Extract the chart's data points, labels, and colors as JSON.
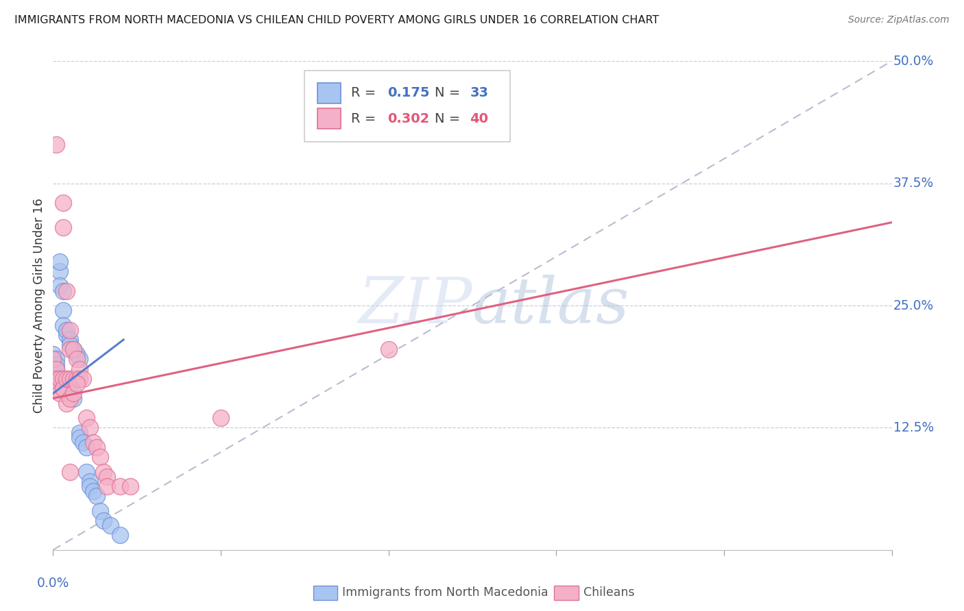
{
  "title": "IMMIGRANTS FROM NORTH MACEDONIA VS CHILEAN CHILD POVERTY AMONG GIRLS UNDER 16 CORRELATION CHART",
  "source": "Source: ZipAtlas.com",
  "ylabel": "Child Poverty Among Girls Under 16",
  "ytick_labels": [
    "12.5%",
    "25.0%",
    "37.5%",
    "50.0%"
  ],
  "ytick_values": [
    0.125,
    0.25,
    0.375,
    0.5
  ],
  "xlim": [
    0.0,
    0.25
  ],
  "ylim": [
    0.0,
    0.5
  ],
  "watermark_zip": "ZIP",
  "watermark_atlas": "atlas",
  "legend_blue_R": "0.175",
  "legend_blue_N": "33",
  "legend_pink_R": "0.302",
  "legend_pink_N": "40",
  "blue_color": "#a8c4f0",
  "pink_color": "#f4b0c8",
  "blue_edge": "#7090d8",
  "pink_edge": "#e07090",
  "trend_blue_color": "#5a7ecc",
  "trend_pink_color": "#e06080",
  "diagonal_color": "#b8bcd0",
  "blue_scatter": [
    [
      0.0,
      0.2
    ],
    [
      0.001,
      0.195
    ],
    [
      0.001,
      0.19
    ],
    [
      0.001,
      0.185
    ],
    [
      0.002,
      0.285
    ],
    [
      0.002,
      0.295
    ],
    [
      0.002,
      0.27
    ],
    [
      0.002,
      0.175
    ],
    [
      0.003,
      0.265
    ],
    [
      0.003,
      0.245
    ],
    [
      0.003,
      0.23
    ],
    [
      0.004,
      0.22
    ],
    [
      0.004,
      0.225
    ],
    [
      0.005,
      0.215
    ],
    [
      0.005,
      0.21
    ],
    [
      0.005,
      0.165
    ],
    [
      0.006,
      0.205
    ],
    [
      0.006,
      0.155
    ],
    [
      0.007,
      0.2
    ],
    [
      0.008,
      0.195
    ],
    [
      0.008,
      0.12
    ],
    [
      0.008,
      0.115
    ],
    [
      0.009,
      0.11
    ],
    [
      0.01,
      0.105
    ],
    [
      0.01,
      0.08
    ],
    [
      0.011,
      0.07
    ],
    [
      0.011,
      0.065
    ],
    [
      0.012,
      0.06
    ],
    [
      0.013,
      0.055
    ],
    [
      0.014,
      0.04
    ],
    [
      0.015,
      0.03
    ],
    [
      0.017,
      0.025
    ],
    [
      0.02,
      0.015
    ]
  ],
  "pink_scatter": [
    [
      0.0,
      0.195
    ],
    [
      0.001,
      0.415
    ],
    [
      0.001,
      0.185
    ],
    [
      0.001,
      0.175
    ],
    [
      0.001,
      0.165
    ],
    [
      0.002,
      0.175
    ],
    [
      0.002,
      0.16
    ],
    [
      0.003,
      0.33
    ],
    [
      0.003,
      0.175
    ],
    [
      0.003,
      0.165
    ],
    [
      0.004,
      0.265
    ],
    [
      0.004,
      0.175
    ],
    [
      0.004,
      0.15
    ],
    [
      0.005,
      0.225
    ],
    [
      0.005,
      0.205
    ],
    [
      0.005,
      0.175
    ],
    [
      0.005,
      0.155
    ],
    [
      0.005,
      0.08
    ],
    [
      0.006,
      0.205
    ],
    [
      0.006,
      0.175
    ],
    [
      0.006,
      0.16
    ],
    [
      0.007,
      0.195
    ],
    [
      0.007,
      0.175
    ],
    [
      0.008,
      0.185
    ],
    [
      0.008,
      0.175
    ],
    [
      0.009,
      0.175
    ],
    [
      0.01,
      0.135
    ],
    [
      0.011,
      0.125
    ],
    [
      0.012,
      0.11
    ],
    [
      0.013,
      0.105
    ],
    [
      0.014,
      0.095
    ],
    [
      0.015,
      0.08
    ],
    [
      0.016,
      0.075
    ],
    [
      0.016,
      0.065
    ],
    [
      0.02,
      0.065
    ],
    [
      0.023,
      0.065
    ],
    [
      0.05,
      0.135
    ],
    [
      0.1,
      0.205
    ],
    [
      0.003,
      0.355
    ],
    [
      0.007,
      0.17
    ]
  ],
  "blue_trend_x": [
    0.0,
    0.021
  ],
  "blue_trend_y": [
    0.16,
    0.215
  ],
  "pink_trend_x": [
    0.0,
    0.25
  ],
  "pink_trend_y": [
    0.155,
    0.335
  ]
}
